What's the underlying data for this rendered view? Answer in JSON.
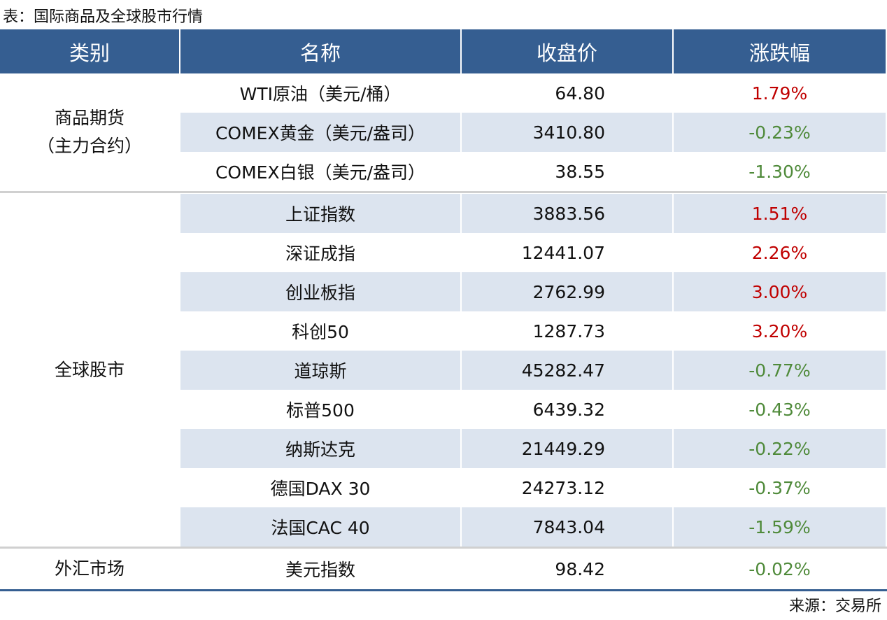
{
  "header": {
    "title": "表：国际商品及全球股市行情"
  },
  "table": {
    "headers": [
      "类别",
      "名称",
      "收盘价",
      "涨跌幅"
    ],
    "groups": [
      {
        "category": [
          "商品期货",
          "（主力合约）"
        ],
        "rows": [
          {
            "cells": [
              "WTI原油（美元/桶）",
              "64.80",
              "1.79%"
            ],
            "color": "#c00000"
          },
          {
            "cells": [
              "COMEX黄金（美元/盎司）",
              "3410.80",
              "-0.23%"
            ],
            "color": "#4f8a3a"
          },
          {
            "cells": [
              "COMEX白银（美元/盎司）",
              "38.55",
              "-1.30%"
            ],
            "color": "#4f8a3a"
          }
        ]
      },
      {
        "category": [
          "全球股市"
        ],
        "rows": [
          {
            "cells": [
              "上证指数",
              "3883.56",
              "1.51%"
            ],
            "color": "#c00000"
          },
          {
            "cells": [
              "深证成指",
              "12441.07",
              "2.26%"
            ],
            "color": "#c00000"
          },
          {
            "cells": [
              "创业板指",
              "2762.99",
              "3.00%"
            ],
            "color": "#c00000"
          },
          {
            "cells": [
              "科创50",
              "1287.73",
              "3.20%"
            ],
            "color": "#c00000"
          },
          {
            "cells": [
              "道琼斯",
              "45282.47",
              "-0.77%"
            ],
            "color": "#4f8a3a"
          },
          {
            "cells": [
              "标普500",
              "6439.32",
              "-0.43%"
            ],
            "color": "#4f8a3a"
          },
          {
            "cells": [
              "纳斯达克",
              "21449.29",
              "-0.22%"
            ],
            "color": "#4f8a3a"
          },
          {
            "cells": [
              "德国DAX 30",
              "24273.12",
              "-0.37%"
            ],
            "color": "#4f8a3a"
          },
          {
            "cells": [
              "法国CAC 40",
              "7843.04",
              "-1.59%"
            ],
            "color": "#4f8a3a"
          }
        ]
      },
      {
        "category": [
          "外汇市场"
        ],
        "rows": [
          {
            "cells": [
              "美元指数",
              "98.42",
              "-0.02%"
            ],
            "color": "#4f8a3a"
          }
        ]
      }
    ]
  },
  "footer": {
    "source": "来源：交易所"
  }
}
